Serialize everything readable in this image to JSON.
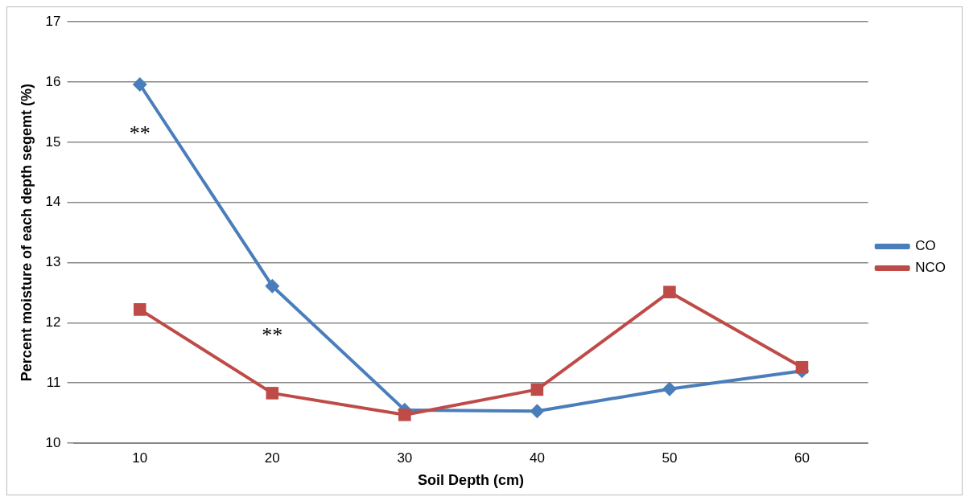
{
  "chart_data": {
    "type": "line",
    "xlabel": "Soil Depth (cm)",
    "ylabel": "Percent moisture of each depth segemt (%)",
    "categories": [
      "10",
      "20",
      "30",
      "40",
      "50",
      "60"
    ],
    "series": [
      {
        "name": "CO",
        "color": "#4a7ebb",
        "marker": "diamond",
        "values": [
          15.96,
          12.61,
          10.55,
          10.53,
          10.9,
          11.2
        ]
      },
      {
        "name": "NCO",
        "color": "#be4b48",
        "marker": "square",
        "values": [
          12.22,
          10.83,
          10.47,
          10.89,
          12.51,
          11.26
        ]
      }
    ],
    "ylim": [
      10,
      17
    ],
    "yticks": [
      10,
      11,
      12,
      13,
      14,
      15,
      16,
      17
    ],
    "grid": "y",
    "legend": "right",
    "annotations": [
      "**",
      "**"
    ]
  }
}
